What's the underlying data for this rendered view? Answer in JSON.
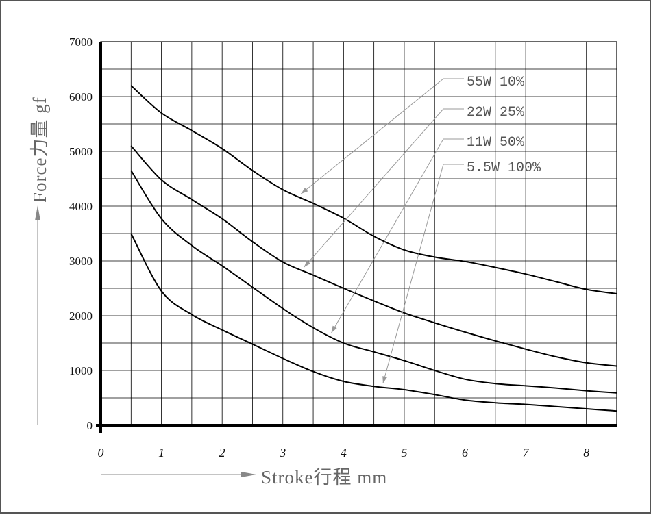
{
  "chart_data": {
    "type": "line",
    "xlabel": "Stroke行程 mm",
    "ylabel": "Force力量 gf",
    "xlim": [
      0,
      8.5
    ],
    "ylim": [
      0,
      7000
    ],
    "x_ticks": [
      "0",
      "1",
      "2",
      "3",
      "4",
      "5",
      "6",
      "7",
      "8"
    ],
    "y_ticks": [
      "0",
      "1000",
      "2000",
      "3000",
      "4000",
      "5000",
      "6000",
      "7000"
    ],
    "grid": true,
    "series": [
      {
        "name": "55W 10%",
        "x": [
          0.5,
          1,
          1.5,
          2,
          2.5,
          3,
          3.5,
          4,
          4.5,
          5,
          5.5,
          6,
          6.5,
          7,
          7.5,
          8,
          8.5
        ],
        "y": [
          6200,
          5700,
          5380,
          5050,
          4650,
          4300,
          4050,
          3780,
          3450,
          3200,
          3070,
          2990,
          2880,
          2760,
          2620,
          2480,
          2400
        ]
      },
      {
        "name": "22W 25%",
        "x": [
          0.5,
          1,
          1.5,
          2,
          2.5,
          3,
          3.5,
          4,
          4.5,
          5,
          5.5,
          6,
          6.5,
          7,
          7.5,
          8,
          8.5
        ],
        "y": [
          5100,
          4480,
          4120,
          3770,
          3350,
          2980,
          2740,
          2500,
          2270,
          2050,
          1870,
          1700,
          1540,
          1390,
          1250,
          1140,
          1080
        ]
      },
      {
        "name": "11W 50%",
        "x": [
          0.5,
          1,
          1.5,
          2,
          2.5,
          3,
          3.5,
          4,
          4.5,
          5,
          5.5,
          6,
          6.5,
          7,
          7.5,
          8,
          8.5
        ],
        "y": [
          4650,
          3770,
          3280,
          2910,
          2520,
          2130,
          1780,
          1500,
          1340,
          1180,
          1000,
          840,
          760,
          720,
          680,
          630,
          590
        ]
      },
      {
        "name": "5.5W 100%",
        "x": [
          0.5,
          1,
          1.5,
          2,
          2.5,
          3,
          3.5,
          4,
          4.5,
          5,
          5.5,
          6,
          6.5,
          7,
          7.5,
          8,
          8.5
        ],
        "y": [
          3500,
          2450,
          2020,
          1740,
          1480,
          1220,
          980,
          800,
          710,
          650,
          560,
          460,
          410,
          380,
          340,
          300,
          260
        ]
      }
    ],
    "legend": {
      "placement": "top-right",
      "labels": [
        "55W 10%",
        "22W 25%",
        "11W 50%",
        "5.5W 100%"
      ]
    }
  }
}
